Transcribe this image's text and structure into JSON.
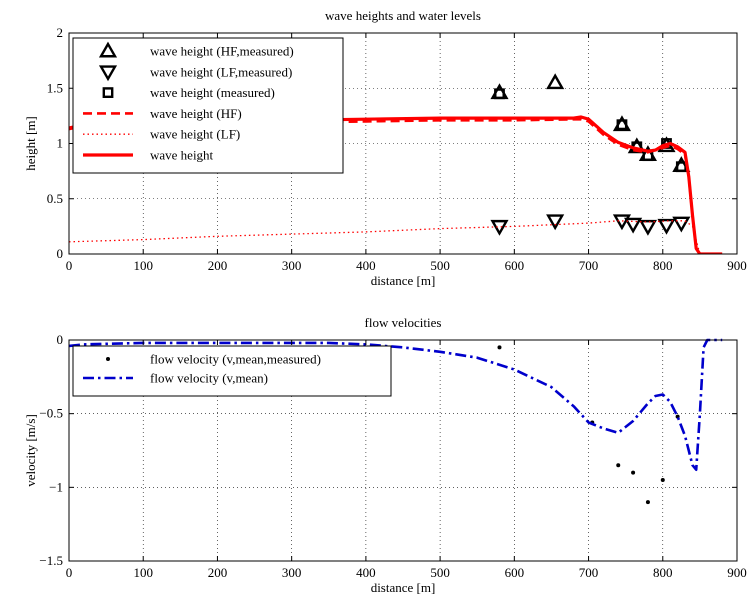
{
  "chart_data": [
    {
      "type": "line",
      "title": "wave heights and water levels",
      "xlabel": "distance [m]",
      "ylabel": "height [m]",
      "xlim": [
        0,
        900
      ],
      "ylim": [
        0,
        2
      ],
      "xticks": [
        0,
        100,
        200,
        300,
        400,
        500,
        600,
        700,
        800,
        900
      ],
      "yticks": [
        0,
        0.5,
        1,
        1.5,
        2
      ],
      "grid": true,
      "legend": "top-left",
      "series": [
        {
          "name": "wave height (HF,measured)",
          "kind": "marker",
          "marker": "triangle-up",
          "color": "#000000",
          "x": [
            580,
            655,
            745,
            765,
            780,
            805,
            825
          ],
          "y": [
            1.46,
            1.55,
            1.17,
            0.97,
            0.9,
            0.98,
            0.8
          ]
        },
        {
          "name": "wave height (LF,measured)",
          "kind": "marker",
          "marker": "triangle-down",
          "color": "#000000",
          "x": [
            580,
            655,
            745,
            760,
            780,
            805,
            825
          ],
          "y": [
            0.25,
            0.3,
            0.3,
            0.27,
            0.25,
            0.26,
            0.28
          ]
        },
        {
          "name": "wave height (measured)",
          "kind": "marker",
          "marker": "square",
          "color": "#000000",
          "x": [
            580,
            745,
            765,
            780,
            805,
            825
          ],
          "y": [
            1.45,
            1.17,
            0.97,
            0.89,
            1.0,
            0.79
          ]
        },
        {
          "name": "wave height (HF)",
          "kind": "line",
          "style": "dashed",
          "color": "#ff0000",
          "x": [
            0,
            20,
            100,
            200,
            300,
            400,
            500,
            600,
            690,
            700,
            720,
            740,
            760,
            780,
            800,
            810,
            820,
            830,
            835,
            840,
            845,
            850,
            880
          ],
          "y": [
            1.13,
            1.16,
            1.17,
            1.18,
            1.19,
            1.2,
            1.21,
            1.21,
            1.22,
            1.2,
            1.08,
            0.99,
            0.94,
            0.92,
            0.96,
            0.98,
            0.95,
            0.9,
            0.7,
            0.35,
            0.05,
            0.0,
            0.0
          ]
        },
        {
          "name": "wave height (LF)",
          "kind": "line",
          "style": "dotted",
          "color": "#ff0000",
          "x": [
            0,
            100,
            200,
            300,
            400,
            500,
            600,
            700,
            740,
            780,
            810,
            830,
            840,
            850,
            880
          ],
          "y": [
            0.11,
            0.13,
            0.16,
            0.18,
            0.2,
            0.23,
            0.25,
            0.28,
            0.3,
            0.29,
            0.3,
            0.3,
            0.25,
            0.0,
            0.0
          ]
        },
        {
          "name": "wave height",
          "kind": "line",
          "style": "solid",
          "color": "#ff0000",
          "x": [
            0,
            20,
            100,
            200,
            300,
            400,
            500,
            600,
            680,
            690,
            700,
            720,
            740,
            760,
            780,
            790,
            800,
            810,
            820,
            830,
            835,
            840,
            845,
            850,
            880
          ],
          "y": [
            1.14,
            1.17,
            1.19,
            1.2,
            1.21,
            1.22,
            1.23,
            1.23,
            1.23,
            1.24,
            1.22,
            1.1,
            1.01,
            0.96,
            0.93,
            0.94,
            0.98,
            1.0,
            0.97,
            0.92,
            0.7,
            0.35,
            0.05,
            0.0,
            0.0
          ]
        }
      ]
    },
    {
      "type": "line",
      "title": "flow velocities",
      "xlabel": "distance [m]",
      "ylabel": "velocity [m/s]",
      "xlim": [
        0,
        900
      ],
      "ylim": [
        -1.5,
        0
      ],
      "xticks": [
        0,
        100,
        200,
        300,
        400,
        500,
        600,
        700,
        800,
        900
      ],
      "yticks": [
        -1.5,
        -1,
        -0.5,
        0
      ],
      "grid": true,
      "legend": "top-left",
      "series": [
        {
          "name": "flow velocity (v,mean,measured)",
          "kind": "marker",
          "marker": "dot",
          "color": "#000000",
          "x": [
            580,
            705,
            740,
            760,
            780,
            800,
            820
          ],
          "y": [
            -0.05,
            -0.56,
            -0.85,
            -0.9,
            -1.1,
            -0.95,
            -0.52
          ]
        },
        {
          "name": "flow velocity (v,mean)",
          "kind": "line",
          "style": "dashdot",
          "color": "#0000cc",
          "x": [
            0,
            20,
            100,
            200,
            300,
            350,
            400,
            450,
            500,
            550,
            600,
            650,
            680,
            700,
            720,
            740,
            760,
            780,
            790,
            800,
            810,
            820,
            830,
            840,
            845,
            850,
            855,
            860,
            880
          ],
          "y": [
            -0.04,
            -0.03,
            -0.02,
            -0.02,
            -0.02,
            -0.02,
            -0.03,
            -0.05,
            -0.08,
            -0.12,
            -0.2,
            -0.32,
            -0.45,
            -0.56,
            -0.6,
            -0.63,
            -0.55,
            -0.43,
            -0.38,
            -0.37,
            -0.42,
            -0.52,
            -0.65,
            -0.85,
            -0.88,
            -0.5,
            -0.05,
            0.0,
            0.0
          ]
        }
      ]
    }
  ]
}
